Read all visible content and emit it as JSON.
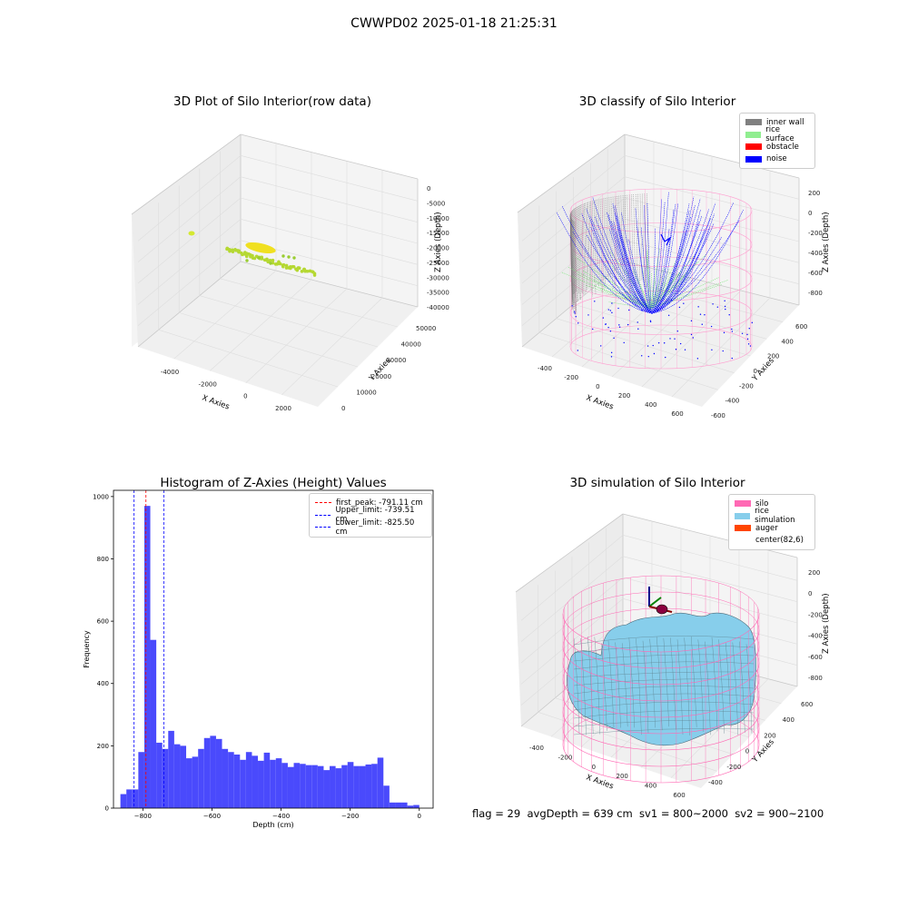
{
  "figure": {
    "title": "CWWPD02 2025-01-18 21:25:31",
    "footer": "flag = 29  avgDepth = 639 cm  sv1 = 800~2000  sv2 = 900~2100"
  },
  "panels": {
    "raw": {
      "title": "3D Plot of Silo Interior(row data)",
      "xlabel": "X Axies",
      "ylabel": "Y Axies",
      "zlabel": "Z Axies (Depth)",
      "xticks": [
        "-4000",
        "-2000",
        "0",
        "2000"
      ],
      "yticks": [
        "0",
        "10000",
        "20000",
        "30000",
        "40000",
        "50000"
      ],
      "zticks": [
        "0",
        "-5000",
        "-10000",
        "-15000",
        "-20000",
        "-25000",
        "-30000",
        "-35000",
        "-40000"
      ]
    },
    "classify": {
      "title": "3D classify of Silo Interior",
      "xlabel": "X Axies",
      "ylabel": "Y Axies",
      "zlabel": "Z Axies (Depth)",
      "xticks": [
        "-400",
        "-200",
        "0",
        "200",
        "400",
        "600"
      ],
      "yticks": [
        "-600",
        "-400",
        "-200",
        "0",
        "200",
        "400",
        "600"
      ],
      "zticks": [
        "200",
        "0",
        "-200",
        "-400",
        "-600",
        "-800"
      ],
      "legend": [
        {
          "label": "inner wall",
          "color": "#808080"
        },
        {
          "label": "rice surface",
          "color": "#90ee90"
        },
        {
          "label": "obstacle",
          "color": "#ff0000"
        },
        {
          "label": "noise",
          "color": "#0000ff"
        }
      ]
    },
    "histogram": {
      "title": "Histogram of Z-Axies (Height) Values",
      "xlabel": "Depth (cm)",
      "ylabel": "Frequency",
      "legend": [
        {
          "label": "first_peak: -791.11 cm",
          "color": "#ff0000"
        },
        {
          "label": "Upper_limit: -739.51 cm",
          "color": "#0000ff"
        },
        {
          "label": "Lower_limit: -825.50 cm",
          "color": "#0000ff"
        }
      ]
    },
    "simulation": {
      "title": "3D simulation of Silo Interior",
      "xlabel": "X Axies",
      "ylabel": "Y Axies",
      "zlabel": "Z Axies (Depth)",
      "xticks": [
        "-400",
        "-200",
        "0",
        "200",
        "400",
        "600"
      ],
      "yticks": [
        "-400",
        "-200",
        "0",
        "200",
        "400",
        "600"
      ],
      "zticks": [
        "200",
        "0",
        "-200",
        "-400",
        "-600",
        "-800"
      ],
      "legend": [
        {
          "label": "silo",
          "color": "#ff69b4"
        },
        {
          "label": "rice simulation",
          "color": "#87ceeb"
        },
        {
          "label": "auger",
          "color": "#ff4500"
        },
        {
          "label": "center(82,6)",
          "color": "#ffffff"
        }
      ]
    }
  },
  "chart_data": [
    {
      "type": "bar",
      "title": "Histogram of Z-Axies (Height) Values",
      "xlabel": "Depth (cm)",
      "ylabel": "Frequency",
      "xlim": [
        -885,
        40
      ],
      "ylim": [
        0,
        1020
      ],
      "xticks": [
        -800,
        -600,
        -400,
        -200,
        0
      ],
      "yticks": [
        0,
        200,
        400,
        600,
        800,
        1000
      ],
      "bin_start": -865,
      "bin_width": 17.3,
      "values": [
        45,
        60,
        60,
        180,
        970,
        540,
        210,
        190,
        248,
        205,
        200,
        160,
        165,
        190,
        225,
        232,
        222,
        190,
        180,
        172,
        155,
        180,
        168,
        152,
        178,
        155,
        160,
        145,
        132,
        145,
        142,
        138,
        138,
        135,
        122,
        135,
        128,
        138,
        148,
        135,
        135,
        140,
        142,
        162,
        72,
        18,
        18,
        18,
        8,
        10
      ],
      "vlines": [
        {
          "name": "first_peak: -791.11 cm",
          "x": -791.11,
          "color": "#ff0000"
        },
        {
          "name": "Upper_limit: -739.51 cm",
          "x": -739.51,
          "color": "#0000ff"
        },
        {
          "name": "Lower_limit: -825.50 cm",
          "x": -825.5,
          "color": "#0000ff"
        }
      ],
      "bar_color": "#4a4afc",
      "legend_position": "top-right"
    }
  ]
}
